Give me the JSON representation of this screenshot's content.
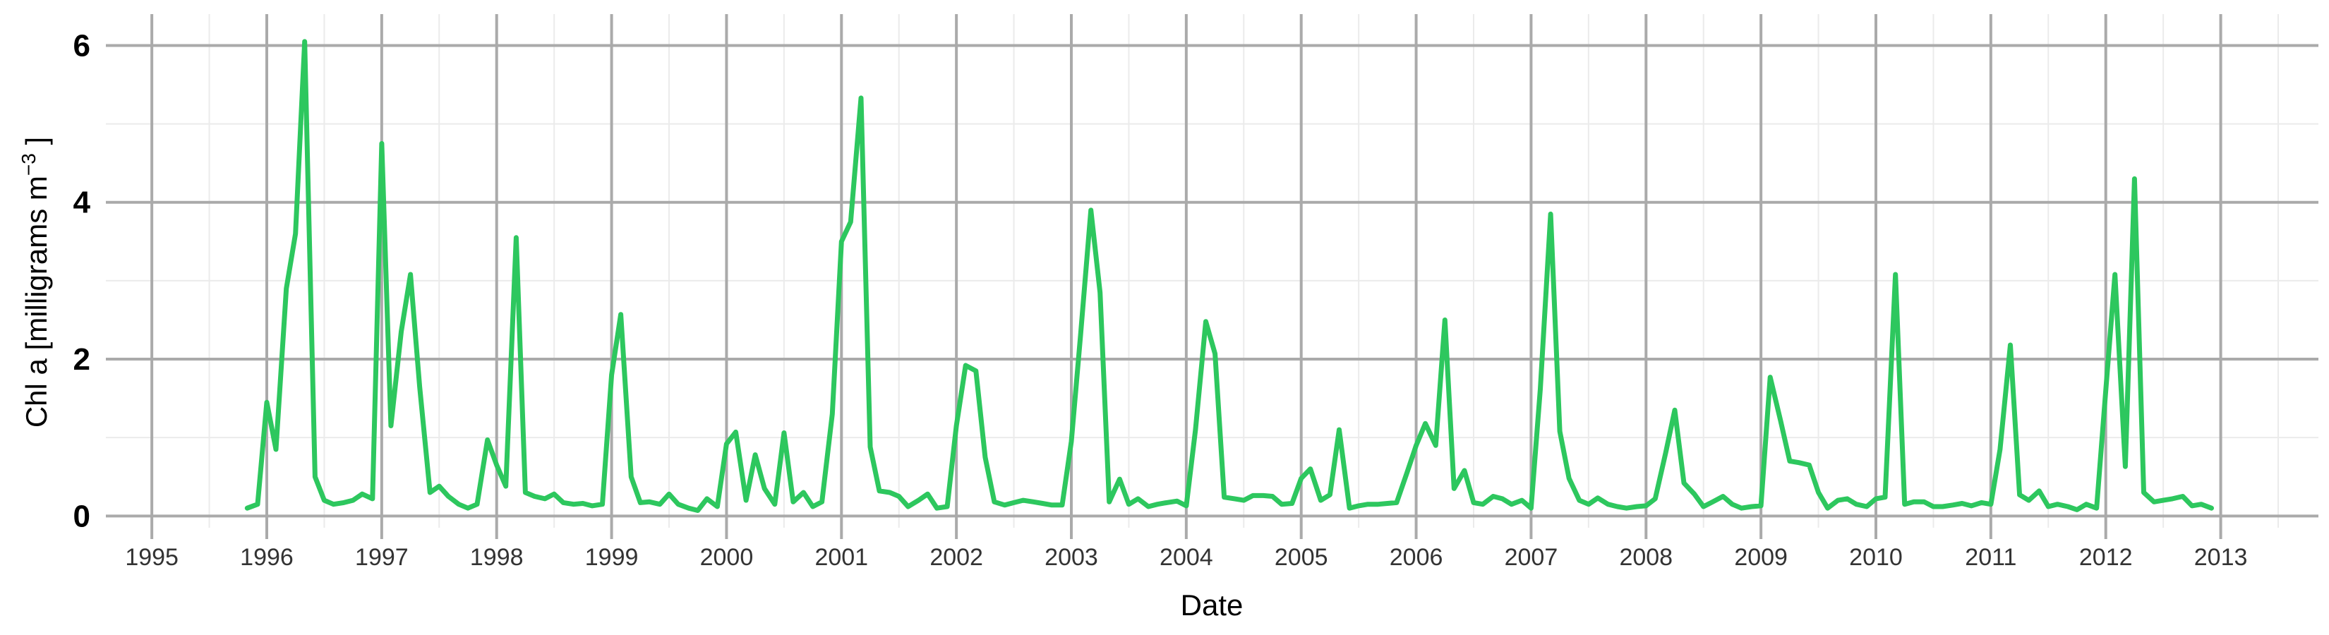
{
  "chart_data": {
    "type": "line",
    "xlabel": "Date",
    "ylabel": "Chl a [milligrams  m",
    "ylabel_superscript": "−3",
    "ylabel_suffix": " ]",
    "xlim": [
      1994.6,
      2013.85
    ],
    "ylim": [
      -0.15,
      6.4
    ],
    "y_ticks": [
      0,
      2,
      4,
      6
    ],
    "y_tick_labels": [
      "0",
      "2",
      "4",
      "6"
    ],
    "x_ticks": [
      1995,
      1996,
      1997,
      1998,
      1999,
      2000,
      2001,
      2002,
      2003,
      2004,
      2005,
      2006,
      2007,
      2008,
      2009,
      2010,
      2011,
      2012,
      2013
    ],
    "x_tick_labels": [
      "1995",
      "1996",
      "1997",
      "1998",
      "1999",
      "2000",
      "2001",
      "2002",
      "2003",
      "2004",
      "2005",
      "2006",
      "2007",
      "2008",
      "2009",
      "2010",
      "2011",
      "2012",
      "2013"
    ],
    "grid": true,
    "color": "#2dc75e",
    "series": [
      {
        "x": [
          1995.83,
          1995.92,
          1996.0,
          1996.08,
          1996.17,
          1996.25,
          1996.33,
          1996.42,
          1996.5,
          1996.58,
          1996.67,
          1996.75,
          1996.83,
          1996.92,
          1997.0,
          1997.08,
          1997.17,
          1997.25,
          1997.33,
          1997.42,
          1997.5,
          1997.58,
          1997.67,
          1997.75,
          1997.83,
          1997.92,
          1998.0,
          1998.08,
          1998.17,
          1998.25,
          1998.33,
          1998.42,
          1998.5,
          1998.58,
          1998.67,
          1998.75,
          1998.83,
          1998.92,
          1999.0,
          1999.08,
          1999.17,
          1999.25,
          1999.33,
          1999.42,
          1999.5,
          1999.58,
          1999.67,
          1999.75,
          1999.83,
          1999.92,
          2000.0,
          2000.08,
          2000.17,
          2000.25,
          2000.33,
          2000.42,
          2000.5,
          2000.58,
          2000.67,
          2000.75,
          2000.83,
          2000.92,
          2001.0,
          2001.08,
          2001.17,
          2001.25,
          2001.33,
          2001.42,
          2001.5,
          2001.58,
          2001.67,
          2001.75,
          2001.83,
          2001.92,
          2002.0,
          2002.08,
          2002.17,
          2002.25,
          2002.33,
          2002.42,
          2002.5,
          2002.58,
          2002.67,
          2002.75,
          2002.83,
          2002.92,
          2003.0,
          2003.08,
          2003.17,
          2003.25,
          2003.33,
          2003.42,
          2003.5,
          2003.58,
          2003.67,
          2003.75,
          2003.83,
          2003.92,
          2004.0,
          2004.08,
          2004.17,
          2004.25,
          2004.33,
          2004.42,
          2004.5,
          2004.58,
          2004.67,
          2004.75,
          2004.83,
          2004.92,
          2005.0,
          2005.08,
          2005.17,
          2005.25,
          2005.33,
          2005.42,
          2005.5,
          2005.58,
          2005.67,
          2005.75,
          2005.83,
          2005.92,
          2006.0,
          2006.08,
          2006.17,
          2006.25,
          2006.33,
          2006.42,
          2006.5,
          2006.58,
          2006.67,
          2006.75,
          2006.83,
          2006.92,
          2007.0,
          2007.08,
          2007.17,
          2007.25,
          2007.33,
          2007.42,
          2007.5,
          2007.58,
          2007.67,
          2007.75,
          2007.83,
          2007.92,
          2008.0,
          2008.08,
          2008.17,
          2008.25,
          2008.33,
          2008.42,
          2008.5,
          2008.58,
          2008.67,
          2008.75,
          2008.83,
          2008.92,
          2009.0,
          2009.08,
          2009.17,
          2009.25,
          2009.33,
          2009.42,
          2009.5,
          2009.58,
          2009.67,
          2009.75,
          2009.83,
          2009.92,
          2010.0,
          2010.08,
          2010.17,
          2010.25,
          2010.33,
          2010.42,
          2010.5,
          2010.58,
          2010.67,
          2010.75,
          2010.83,
          2010.92,
          2011.0,
          2011.08,
          2011.17,
          2011.25,
          2011.33,
          2011.42,
          2011.5,
          2011.58,
          2011.67,
          2011.75,
          2011.83,
          2011.92,
          2012.0,
          2012.08,
          2012.17,
          2012.25,
          2012.33,
          2012.42,
          2012.5,
          2012.58,
          2012.67,
          2012.75,
          2012.83,
          2012.92
        ],
        "y": [
          0.1,
          0.15,
          1.45,
          0.85,
          2.9,
          3.6,
          6.05,
          0.5,
          0.2,
          0.15,
          0.17,
          0.2,
          0.28,
          0.22,
          4.75,
          1.15,
          2.35,
          3.08,
          1.65,
          0.3,
          0.38,
          0.25,
          0.15,
          0.1,
          0.15,
          0.97,
          0.65,
          0.38,
          3.55,
          0.3,
          0.25,
          0.22,
          0.28,
          0.17,
          0.15,
          0.16,
          0.13,
          0.15,
          1.8,
          2.57,
          0.5,
          0.17,
          0.18,
          0.15,
          0.28,
          0.15,
          0.1,
          0.07,
          0.22,
          0.12,
          0.92,
          1.07,
          0.2,
          0.78,
          0.35,
          0.15,
          1.06,
          0.18,
          0.3,
          0.12,
          0.18,
          1.3,
          3.5,
          3.75,
          5.33,
          0.88,
          0.32,
          0.3,
          0.25,
          0.12,
          0.2,
          0.28,
          0.1,
          0.12,
          1.15,
          1.92,
          1.85,
          0.75,
          0.18,
          0.14,
          0.17,
          0.2,
          0.18,
          0.16,
          0.14,
          0.14,
          0.95,
          2.3,
          3.9,
          2.85,
          0.18,
          0.47,
          0.15,
          0.22,
          0.12,
          0.15,
          0.17,
          0.19,
          0.13,
          1.1,
          2.48,
          2.07,
          0.24,
          0.22,
          0.2,
          0.26,
          0.26,
          0.25,
          0.15,
          0.16,
          0.48,
          0.6,
          0.2,
          0.27,
          1.1,
          0.1,
          0.13,
          0.15,
          0.15,
          0.16,
          0.17,
          0.55,
          0.9,
          1.18,
          0.9,
          2.5,
          0.35,
          0.58,
          0.17,
          0.15,
          0.25,
          0.22,
          0.15,
          0.2,
          0.1,
          1.62,
          3.85,
          1.08,
          0.48,
          0.2,
          0.15,
          0.23,
          0.15,
          0.12,
          0.1,
          0.12,
          0.13,
          0.22,
          0.8,
          1.35,
          0.42,
          0.28,
          0.12,
          0.18,
          0.25,
          0.15,
          0.1,
          0.12,
          0.13,
          1.77,
          1.22,
          0.7,
          0.68,
          0.65,
          0.3,
          0.1,
          0.2,
          0.22,
          0.15,
          0.12,
          0.22,
          0.24,
          3.08,
          0.15,
          0.18,
          0.18,
          0.12,
          0.12,
          0.14,
          0.16,
          0.13,
          0.17,
          0.15,
          0.85,
          2.18,
          0.27,
          0.2,
          0.32,
          0.12,
          0.15,
          0.12,
          0.08,
          0.15,
          0.1,
          1.6,
          3.08,
          0.63,
          4.3,
          0.3,
          0.18,
          0.2,
          0.22,
          0.25,
          0.13,
          0.15,
          0.1
        ]
      }
    ]
  }
}
